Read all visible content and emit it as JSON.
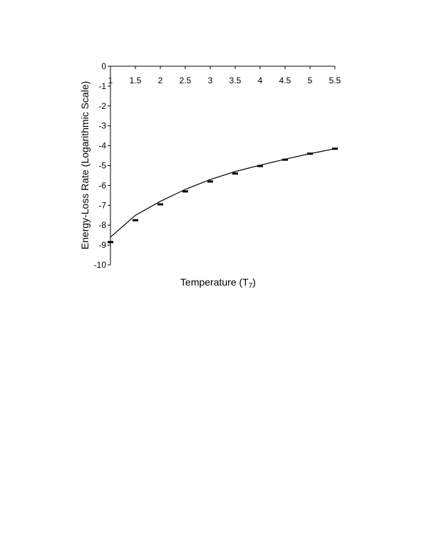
{
  "chart_data": {
    "type": "line",
    "xlabel_main": "Temperature (T",
    "xlabel_sub": "7",
    "xlabel_close": ")",
    "ylabel": "Energy-Loss Rate (Logarithmic Scale)",
    "xlim": [
      1,
      5.5
    ],
    "ylim": [
      -10,
      0
    ],
    "x_ticks": [
      1,
      1.5,
      2,
      2.5,
      3,
      3.5,
      4,
      4.5,
      5,
      5.5
    ],
    "x_tick_labels": [
      "1",
      "1.5",
      "2",
      "2.5",
      "3",
      "3.5",
      "4",
      "4.5",
      "5",
      "5.5"
    ],
    "y_ticks": [
      0,
      -1,
      -2,
      -3,
      -4,
      -5,
      -6,
      -7,
      -8,
      -9,
      -10
    ],
    "y_tick_labels": [
      "0",
      "-1",
      "-2",
      "-3",
      "-4",
      "-5",
      "-6",
      "-7",
      "-8",
      "-9",
      "-10"
    ],
    "grid": false,
    "series": [
      {
        "style": "markers",
        "x": [
          1,
          1.5,
          2,
          2.5,
          3,
          3.5,
          4,
          4.5,
          5,
          5.5
        ],
        "y": [
          -8.85,
          -7.75,
          -6.95,
          -6.3,
          -5.8,
          -5.4,
          -5.02,
          -4.7,
          -4.4,
          -4.15
        ]
      },
      {
        "style": "line",
        "x": [
          1,
          1.5,
          2,
          2.5,
          3,
          3.5,
          4,
          4.5,
          5,
          5.5
        ],
        "y": [
          -8.6,
          -7.5,
          -6.8,
          -6.2,
          -5.7,
          -5.3,
          -4.98,
          -4.68,
          -4.4,
          -4.15
        ]
      }
    ],
    "colors": {
      "axis": "#000000",
      "line": "#000000",
      "marker": "#000000"
    }
  }
}
